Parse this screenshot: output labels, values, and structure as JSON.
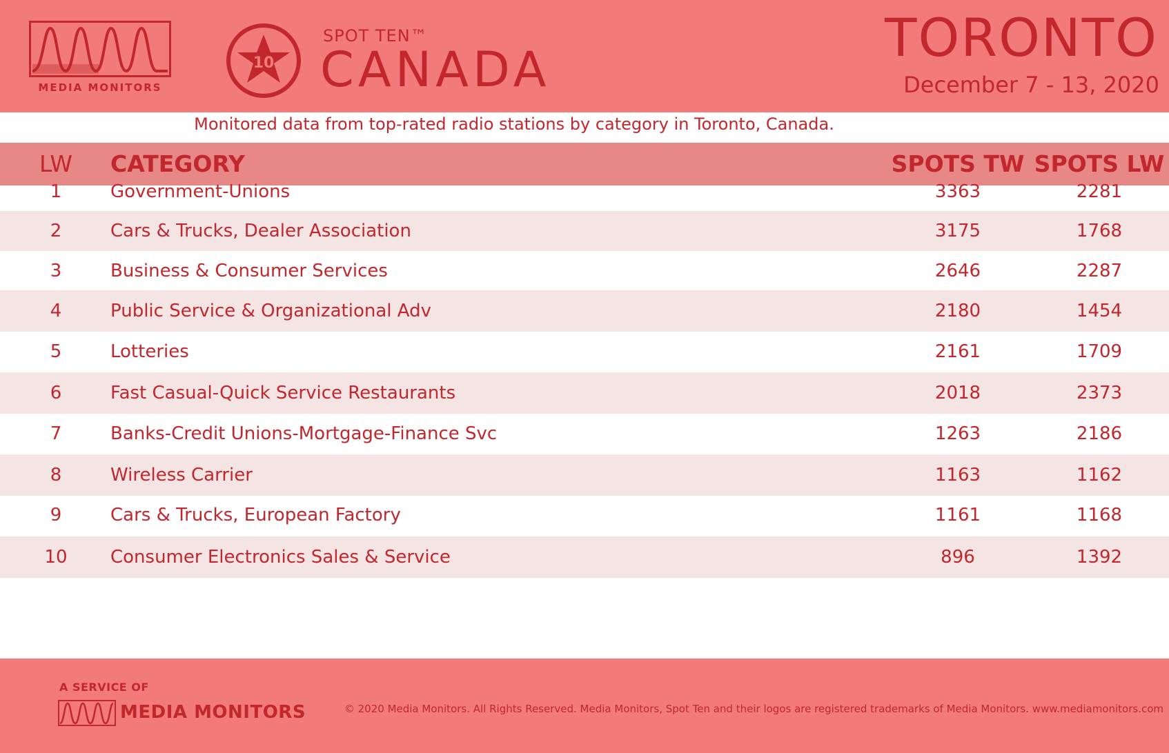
{
  "header": {
    "logo_wordmark": "MEDIA MONITORS",
    "badge_number": "10",
    "spot_kicker": "SPOT TEN™",
    "spot_title": "CANADA",
    "city": "TORONTO",
    "date_range": "December 7 - 13, 2020"
  },
  "subtitle": "Monitored data from top-rated radio stations by category in Toronto, Canada.",
  "table": {
    "headers": {
      "rank": "LW",
      "category": "CATEGORY",
      "spots_tw": "SPOTS TW",
      "spots_lw": "SPOTS LW"
    },
    "rows": [
      {
        "rank": "1",
        "category": "Government-Unions",
        "spots_tw": "3363",
        "spots_lw": "2281"
      },
      {
        "rank": "2",
        "category": "Cars & Trucks, Dealer Association",
        "spots_tw": "3175",
        "spots_lw": "1768"
      },
      {
        "rank": "3",
        "category": "Business & Consumer Services",
        "spots_tw": "2646",
        "spots_lw": "2287"
      },
      {
        "rank": "4",
        "category": "Public Service & Organizational Adv",
        "spots_tw": "2180",
        "spots_lw": "1454"
      },
      {
        "rank": "5",
        "category": "Lotteries",
        "spots_tw": "2161",
        "spots_lw": "1709"
      },
      {
        "rank": "6",
        "category": "Fast Casual-Quick Service Restaurants",
        "spots_tw": "2018",
        "spots_lw": "2373"
      },
      {
        "rank": "7",
        "category": "Banks-Credit Unions-Mortgage-Finance Svc",
        "spots_tw": "1263",
        "spots_lw": "2186"
      },
      {
        "rank": "8",
        "category": "Wireless Carrier",
        "spots_tw": "1163",
        "spots_lw": "1162"
      },
      {
        "rank": "9",
        "category": "Cars & Trucks, European Factory",
        "spots_tw": "1161",
        "spots_lw": "1168"
      },
      {
        "rank": "10",
        "category": "Consumer Electronics Sales & Service",
        "spots_tw": "896",
        "spots_lw": "1392"
      }
    ]
  },
  "footer": {
    "service_of": "A SERVICE OF",
    "wordmark": "MEDIA MONITORS",
    "copyright": "© 2020 Media Monitors. All Rights Reserved. Media Monitors, Spot Ten and their logos are registered trademarks of Media Monitors. www.mediamonitors.com"
  },
  "colors": {
    "brand_red": "#c1272d",
    "header_bg": "#f27a7a",
    "table_header_bg": "#e88886",
    "row_shade": "#f4e4e3"
  },
  "icons": [
    "media-monitors-logo-icon",
    "spot-ten-star-badge-icon"
  ]
}
